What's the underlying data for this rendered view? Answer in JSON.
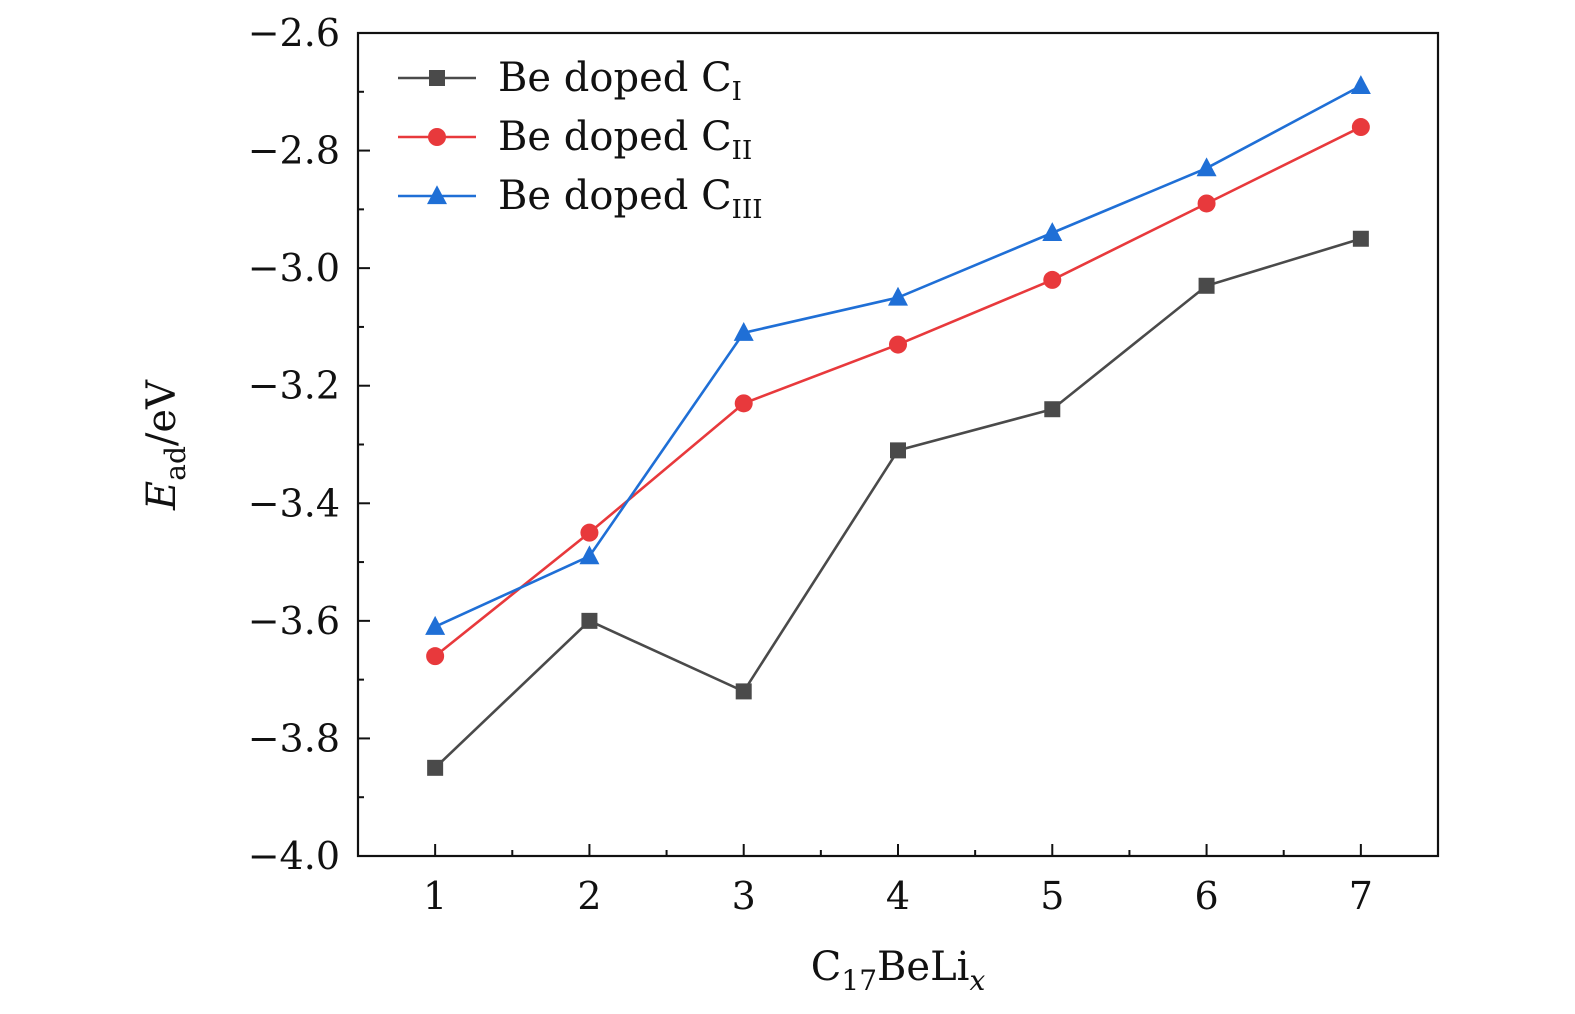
{
  "chart_data": {
    "type": "line",
    "title": "",
    "xlabel": "C",
    "xlabel_sub": "17",
    "xlabel_tail": "BeLi",
    "xlabel_var": "x",
    "ylabel": "E",
    "ylabel_sub": "ad",
    "ylabel_unit": "/eV",
    "x": [
      1,
      2,
      3,
      4,
      5,
      6,
      7
    ],
    "xlim": [
      0.5,
      7.5
    ],
    "ylim": [
      -4.0,
      -2.6
    ],
    "xticks": [
      {
        "value": 1,
        "label": "1"
      },
      {
        "value": 2,
        "label": "2"
      },
      {
        "value": 3,
        "label": "3"
      },
      {
        "value": 4,
        "label": "4"
      },
      {
        "value": 5,
        "label": "5"
      },
      {
        "value": 6,
        "label": "6"
      },
      {
        "value": 7,
        "label": "7"
      }
    ],
    "xminor": [
      1.5,
      2.5,
      3.5,
      4.5,
      5.5,
      6.5
    ],
    "yticks": [
      {
        "value": -2.6,
        "label": "−2.6"
      },
      {
        "value": -2.8,
        "label": "−2.8"
      },
      {
        "value": -3.0,
        "label": "−3.0"
      },
      {
        "value": -3.2,
        "label": "−3.2"
      },
      {
        "value": -3.4,
        "label": "−3.4"
      },
      {
        "value": -3.6,
        "label": "−3.6"
      },
      {
        "value": -3.8,
        "label": "−3.8"
      },
      {
        "value": -4.0,
        "label": "−4.0"
      }
    ],
    "yminor": [
      -2.7,
      -2.9,
      -3.1,
      -3.3,
      -3.5,
      -3.7,
      -3.9
    ],
    "legend_position": "top-left",
    "series": [
      {
        "name": "Be doped C",
        "name_sub": "I",
        "marker": "square",
        "color": "#4a4a4a",
        "values": [
          -3.85,
          -3.6,
          -3.72,
          -3.31,
          -3.24,
          -3.03,
          -2.95
        ]
      },
      {
        "name": "Be doped C",
        "name_sub": "II",
        "marker": "circle",
        "color": "#e8393c",
        "values": [
          -3.66,
          -3.45,
          -3.23,
          -3.13,
          -3.02,
          -2.89,
          -2.76
        ]
      },
      {
        "name": "Be doped C",
        "name_sub": "III",
        "marker": "triangle",
        "color": "#1f6fd6",
        "values": [
          -3.61,
          -3.49,
          -3.11,
          -3.05,
          -2.94,
          -2.83,
          -2.69
        ]
      }
    ]
  }
}
